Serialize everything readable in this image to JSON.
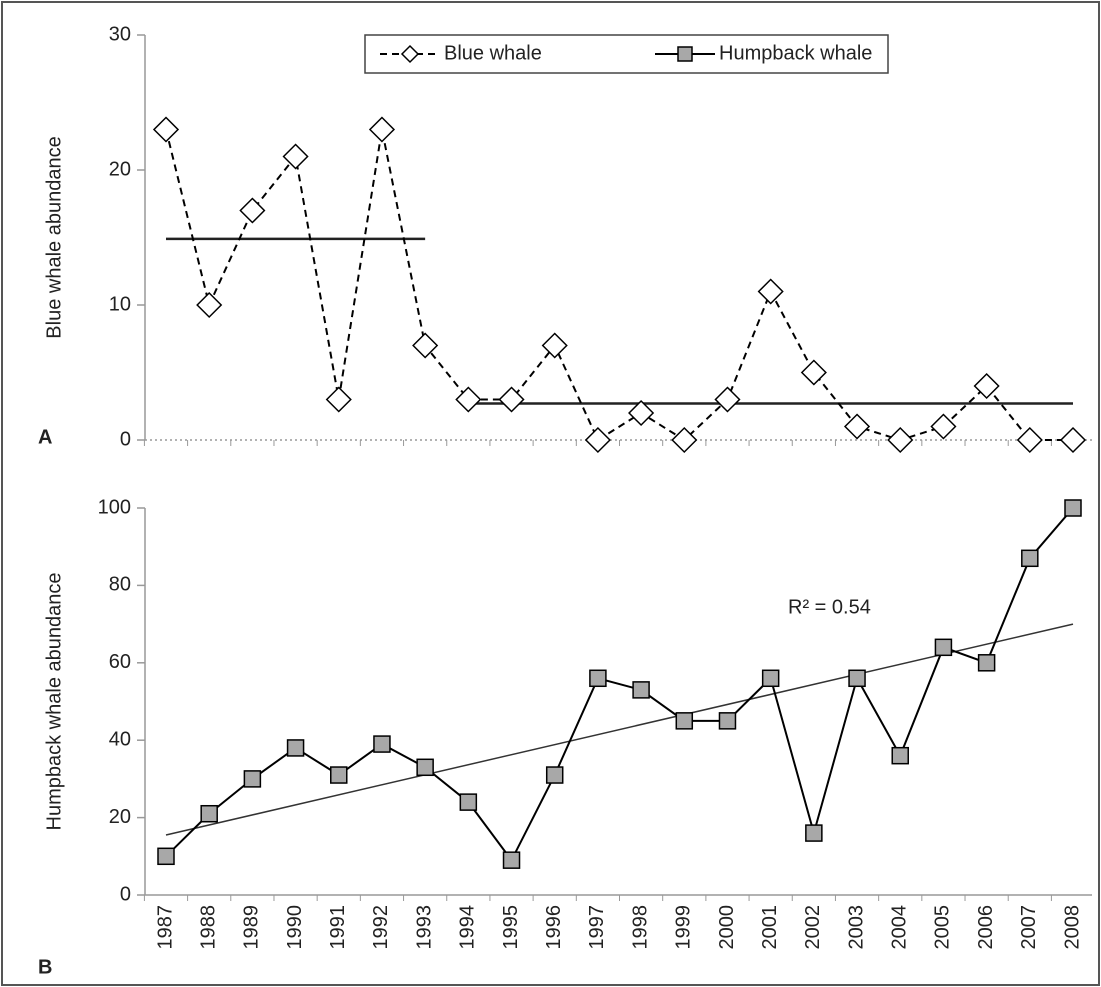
{
  "chart_data": [
    {
      "type": "line",
      "panel_label": "A",
      "ylabel": "Blue whale abundance",
      "ylim": [
        0,
        30
      ],
      "yticks": [
        0,
        10,
        20,
        30
      ],
      "series": [
        {
          "name": "Blue whale",
          "color": "#000000",
          "marker": "diamond",
          "marker_fill": "#ffffff",
          "dashed": true,
          "values": [
            23,
            10,
            17,
            21,
            3,
            23,
            7,
            3,
            3,
            7,
            0,
            2,
            0,
            3,
            11,
            5,
            1,
            0,
            1,
            4,
            0,
            0
          ]
        }
      ],
      "reference_lines": [
        {
          "start": "1987",
          "end": "1993",
          "value": 14.9
        },
        {
          "start": "1994",
          "end": "2008",
          "value": 2.7
        }
      ],
      "legend": "top"
    },
    {
      "type": "line",
      "panel_label": "B",
      "ylabel": "Humpback whale abundance",
      "categories": [
        "1987",
        "1988",
        "1989",
        "1990",
        "1991",
        "1992",
        "1993",
        "1994",
        "1995",
        "1996",
        "1997",
        "1998",
        "1999",
        "2000",
        "2001",
        "2002",
        "2003",
        "2004",
        "2005",
        "2006",
        "2007",
        "2008"
      ],
      "ylim": [
        0,
        100
      ],
      "yticks": [
        0,
        20,
        40,
        60,
        80,
        100
      ],
      "series": [
        {
          "name": "Humpback whale",
          "color": "#000000",
          "marker": "square",
          "marker_fill": "#a8a8a8",
          "dashed": false,
          "values": [
            10,
            21,
            30,
            38,
            31,
            39,
            33,
            24,
            9,
            31,
            56,
            53,
            45,
            45,
            56,
            16,
            56,
            36,
            64,
            60,
            87,
            100
          ]
        }
      ],
      "trendline": {
        "values": [
          15.5,
          70
        ]
      },
      "annotation": "R² = 0.54"
    }
  ]
}
